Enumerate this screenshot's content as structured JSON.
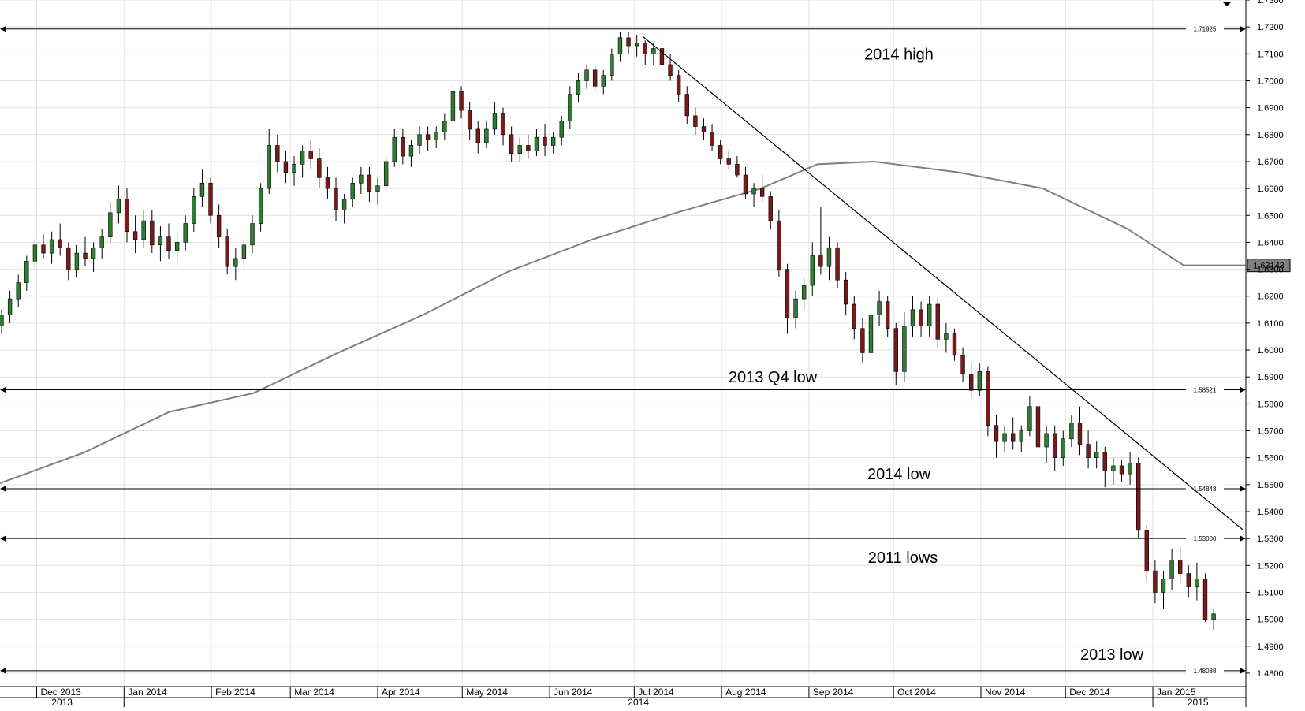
{
  "chart_data": {
    "type": "candlestick",
    "title": "",
    "xlabel": "",
    "ylabel": "",
    "ylim": [
      1.475,
      1.73
    ],
    "y_ticks": [
      "1.7300",
      "1.7200",
      "1.7100",
      "1.7000",
      "1.6900",
      "1.6800",
      "1.6700",
      "1.6600",
      "1.6500",
      "1.6400",
      "1.6300",
      "1.6200",
      "1.6100",
      "1.6000",
      "1.5900",
      "1.5800",
      "1.5700",
      "1.5600",
      "1.5500",
      "1.5400",
      "1.5300",
      "1.5200",
      "1.5100",
      "1.5000",
      "1.4900",
      "1.4800"
    ],
    "x_months": [
      "Dec 2013",
      "Jan 2014",
      "Feb 2014",
      "Mar 2014",
      "Apr 2014",
      "May 2014",
      "Jun 2014",
      "Jul 2014",
      "Aug 2014",
      "Sep 2014",
      "Oct 2014",
      "Nov 2014",
      "Dec 2014",
      "Jan 2015"
    ],
    "x_years": [
      "2013",
      "2014",
      "2015"
    ],
    "candle_colors": {
      "up": "#2e7d32",
      "down": "#7a1a1a"
    },
    "ma_color": "#7f7f7f",
    "horizontal_levels": [
      {
        "value": 1.71925,
        "label": "1.71925",
        "annotation": "2014 high"
      },
      {
        "value": 1.58521,
        "label": "1.58521",
        "annotation": "2013 Q4 low"
      },
      {
        "value": 1.54848,
        "label": "1.54848",
        "annotation": "2014 low"
      },
      {
        "value": 1.53,
        "label": "1.53000",
        "annotation": "2011 lows"
      },
      {
        "value": 1.48088,
        "label": "1.48088",
        "annotation": "2013 low"
      }
    ],
    "last_value_label": "1.63143",
    "trendline": {
      "from": [
        "Jul 2014",
        1.7165
      ],
      "to": [
        "Jan 2015",
        1.5332
      ]
    },
    "moving_average": [
      [
        0,
        1.5505
      ],
      [
        30,
        1.562
      ],
      [
        60,
        1.577
      ],
      [
        90,
        1.584
      ],
      [
        120,
        1.599
      ],
      [
        150,
        1.613
      ],
      [
        180,
        1.629
      ],
      [
        210,
        1.641
      ],
      [
        240,
        1.651
      ],
      [
        270,
        1.66
      ],
      [
        290,
        1.669
      ],
      [
        310,
        1.67
      ],
      [
        340,
        1.666
      ],
      [
        370,
        1.66
      ],
      [
        400,
        1.645
      ],
      [
        420,
        1.6314
      ]
    ],
    "moving_average_x_note": "calendar-day offset from 18 Nov 2013",
    "series": [
      {
        "name": "",
        "ohlc": [
          [
            1.609,
            1.615,
            1.606,
            1.613
          ],
          [
            1.613,
            1.622,
            1.61,
            1.619
          ],
          [
            1.619,
            1.628,
            1.616,
            1.625
          ],
          [
            1.625,
            1.635,
            1.622,
            1.633
          ],
          [
            1.633,
            1.642,
            1.63,
            1.639
          ],
          [
            1.639,
            1.643,
            1.634,
            1.636
          ],
          [
            1.636,
            1.644,
            1.632,
            1.641
          ],
          [
            1.641,
            1.647,
            1.635,
            1.638
          ],
          [
            1.638,
            1.64,
            1.626,
            1.63
          ],
          [
            1.63,
            1.639,
            1.627,
            1.636
          ],
          [
            1.636,
            1.642,
            1.631,
            1.634
          ],
          [
            1.634,
            1.64,
            1.629,
            1.638
          ],
          [
            1.638,
            1.645,
            1.634,
            1.642
          ],
          [
            1.642,
            1.655,
            1.64,
            1.651
          ],
          [
            1.651,
            1.661,
            1.647,
            1.656
          ],
          [
            1.656,
            1.66,
            1.64,
            1.644
          ],
          [
            1.644,
            1.65,
            1.636,
            1.641
          ],
          [
            1.641,
            1.652,
            1.638,
            1.648
          ],
          [
            1.648,
            1.652,
            1.636,
            1.639
          ],
          [
            1.639,
            1.646,
            1.633,
            1.642
          ],
          [
            1.642,
            1.647,
            1.634,
            1.637
          ],
          [
            1.637,
            1.644,
            1.631,
            1.64
          ],
          [
            1.64,
            1.65,
            1.637,
            1.647
          ],
          [
            1.647,
            1.66,
            1.644,
            1.657
          ],
          [
            1.657,
            1.667,
            1.653,
            1.662
          ],
          [
            1.662,
            1.664,
            1.647,
            1.65
          ],
          [
            1.65,
            1.654,
            1.638,
            1.642
          ],
          [
            1.642,
            1.645,
            1.628,
            1.631
          ],
          [
            1.631,
            1.638,
            1.626,
            1.634
          ],
          [
            1.634,
            1.642,
            1.63,
            1.639
          ],
          [
            1.639,
            1.65,
            1.636,
            1.647
          ],
          [
            1.647,
            1.662,
            1.644,
            1.66
          ],
          [
            1.66,
            1.682,
            1.658,
            1.676
          ],
          [
            1.676,
            1.68,
            1.666,
            1.67
          ],
          [
            1.67,
            1.674,
            1.662,
            1.666
          ],
          [
            1.666,
            1.672,
            1.661,
            1.669
          ],
          [
            1.669,
            1.676,
            1.664,
            1.674
          ],
          [
            1.674,
            1.678,
            1.667,
            1.671
          ],
          [
            1.671,
            1.675,
            1.66,
            1.664
          ],
          [
            1.664,
            1.668,
            1.656,
            1.66
          ],
          [
            1.66,
            1.664,
            1.648,
            1.652
          ],
          [
            1.652,
            1.658,
            1.647,
            1.656
          ],
          [
            1.656,
            1.664,
            1.653,
            1.662
          ],
          [
            1.662,
            1.668,
            1.658,
            1.665
          ],
          [
            1.665,
            1.668,
            1.655,
            1.659
          ],
          [
            1.659,
            1.664,
            1.654,
            1.661
          ],
          [
            1.661,
            1.672,
            1.659,
            1.67
          ],
          [
            1.67,
            1.682,
            1.668,
            1.679
          ],
          [
            1.679,
            1.682,
            1.669,
            1.672
          ],
          [
            1.672,
            1.678,
            1.668,
            1.676
          ],
          [
            1.676,
            1.683,
            1.673,
            1.68
          ],
          [
            1.68,
            1.683,
            1.674,
            1.678
          ],
          [
            1.678,
            1.683,
            1.675,
            1.681
          ],
          [
            1.681,
            1.688,
            1.678,
            1.685
          ],
          [
            1.685,
            1.699,
            1.683,
            1.696
          ],
          [
            1.696,
            1.698,
            1.686,
            1.689
          ],
          [
            1.689,
            1.692,
            1.678,
            1.682
          ],
          [
            1.682,
            1.685,
            1.673,
            1.677
          ],
          [
            1.677,
            1.685,
            1.675,
            1.682
          ],
          [
            1.682,
            1.692,
            1.68,
            1.688
          ],
          [
            1.688,
            1.69,
            1.676,
            1.68
          ],
          [
            1.68,
            1.683,
            1.67,
            1.673
          ],
          [
            1.673,
            1.679,
            1.67,
            1.676
          ],
          [
            1.676,
            1.68,
            1.671,
            1.674
          ],
          [
            1.674,
            1.682,
            1.672,
            1.679
          ],
          [
            1.679,
            1.684,
            1.672,
            1.676
          ],
          [
            1.676,
            1.681,
            1.673,
            1.679
          ],
          [
            1.679,
            1.687,
            1.676,
            1.685
          ],
          [
            1.685,
            1.698,
            1.682,
            1.695
          ],
          [
            1.695,
            1.703,
            1.692,
            1.7
          ],
          [
            1.7,
            1.706,
            1.697,
            1.704
          ],
          [
            1.704,
            1.706,
            1.696,
            1.698
          ],
          [
            1.698,
            1.704,
            1.695,
            1.702
          ],
          [
            1.702,
            1.712,
            1.7,
            1.71
          ],
          [
            1.71,
            1.718,
            1.707,
            1.716
          ],
          [
            1.716,
            1.718,
            1.71,
            1.713
          ],
          [
            1.713,
            1.717,
            1.709,
            1.714
          ],
          [
            1.714,
            1.715,
            1.706,
            1.71
          ],
          [
            1.71,
            1.714,
            1.706,
            1.712
          ],
          [
            1.712,
            1.716,
            1.704,
            1.706
          ],
          [
            1.706,
            1.71,
            1.7,
            1.702
          ],
          [
            1.702,
            1.704,
            1.692,
            1.695
          ],
          [
            1.695,
            1.698,
            1.684,
            1.687
          ],
          [
            1.687,
            1.69,
            1.68,
            1.683
          ],
          [
            1.683,
            1.686,
            1.678,
            1.681
          ],
          [
            1.681,
            1.684,
            1.674,
            1.676
          ],
          [
            1.676,
            1.678,
            1.669,
            1.671
          ],
          [
            1.671,
            1.674,
            1.667,
            1.669
          ],
          [
            1.669,
            1.672,
            1.664,
            1.665
          ],
          [
            1.665,
            1.668,
            1.656,
            1.658
          ],
          [
            1.658,
            1.662,
            1.653,
            1.66
          ],
          [
            1.66,
            1.665,
            1.655,
            1.657
          ],
          [
            1.657,
            1.659,
            1.645,
            1.648
          ],
          [
            1.648,
            1.652,
            1.627,
            1.63
          ],
          [
            1.63,
            1.632,
            1.606,
            1.612
          ],
          [
            1.612,
            1.622,
            1.608,
            1.619
          ],
          [
            1.619,
            1.627,
            1.615,
            1.624
          ],
          [
            1.624,
            1.64,
            1.62,
            1.635
          ],
          [
            1.635,
            1.653,
            1.628,
            1.631
          ],
          [
            1.631,
            1.642,
            1.626,
            1.638
          ],
          [
            1.638,
            1.64,
            1.623,
            1.626
          ],
          [
            1.626,
            1.629,
            1.613,
            1.617
          ],
          [
            1.617,
            1.62,
            1.604,
            1.608
          ],
          [
            1.608,
            1.612,
            1.595,
            1.599
          ],
          [
            1.599,
            1.618,
            1.596,
            1.613
          ],
          [
            1.613,
            1.622,
            1.609,
            1.618
          ],
          [
            1.618,
            1.62,
            1.605,
            1.608
          ],
          [
            1.608,
            1.61,
            1.587,
            1.592
          ],
          [
            1.592,
            1.614,
            1.588,
            1.609
          ],
          [
            1.609,
            1.62,
            1.605,
            1.615
          ],
          [
            1.615,
            1.618,
            1.605,
            1.609
          ],
          [
            1.609,
            1.62,
            1.605,
            1.617
          ],
          [
            1.617,
            1.619,
            1.601,
            1.604
          ],
          [
            1.604,
            1.61,
            1.599,
            1.606
          ],
          [
            1.606,
            1.608,
            1.596,
            1.598
          ],
          [
            1.598,
            1.601,
            1.588,
            1.591
          ],
          [
            1.591,
            1.595,
            1.582,
            1.585
          ],
          [
            1.585,
            1.595,
            1.583,
            1.592
          ],
          [
            1.592,
            1.594,
            1.568,
            1.572
          ],
          [
            1.572,
            1.576,
            1.56,
            1.566
          ],
          [
            1.566,
            1.572,
            1.562,
            1.569
          ],
          [
            1.569,
            1.575,
            1.563,
            1.566
          ],
          [
            1.566,
            1.572,
            1.562,
            1.57
          ],
          [
            1.57,
            1.583,
            1.568,
            1.579
          ],
          [
            1.579,
            1.581,
            1.56,
            1.564
          ],
          [
            1.564,
            1.572,
            1.558,
            1.569
          ],
          [
            1.569,
            1.572,
            1.555,
            1.56
          ],
          [
            1.56,
            1.57,
            1.557,
            1.567
          ],
          [
            1.567,
            1.576,
            1.564,
            1.573
          ],
          [
            1.573,
            1.579,
            1.561,
            1.565
          ],
          [
            1.565,
            1.57,
            1.556,
            1.56
          ],
          [
            1.56,
            1.566,
            1.556,
            1.562
          ],
          [
            1.562,
            1.564,
            1.549,
            1.555
          ],
          [
            1.555,
            1.56,
            1.55,
            1.557
          ],
          [
            1.557,
            1.559,
            1.551,
            1.554
          ],
          [
            1.554,
            1.562,
            1.55,
            1.558
          ],
          [
            1.558,
            1.56,
            1.53,
            1.533
          ],
          [
            1.533,
            1.535,
            1.514,
            1.518
          ],
          [
            1.518,
            1.522,
            1.506,
            1.51
          ],
          [
            1.51,
            1.518,
            1.504,
            1.515
          ],
          [
            1.515,
            1.526,
            1.511,
            1.522
          ],
          [
            1.522,
            1.527,
            1.513,
            1.517
          ],
          [
            1.517,
            1.52,
            1.508,
            1.512
          ],
          [
            1.512,
            1.521,
            1.507,
            1.515
          ],
          [
            1.515,
            1.517,
            1.499,
            1.5
          ],
          [
            1.5,
            1.504,
            1.496,
            1.502
          ]
        ]
      }
    ]
  }
}
